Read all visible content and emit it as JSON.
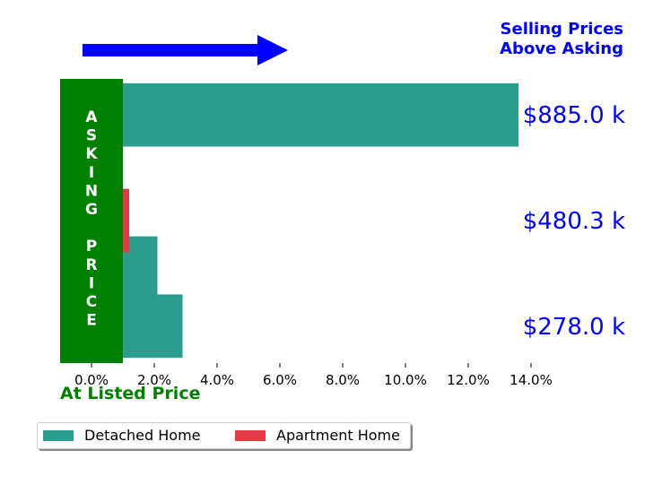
{
  "chart_data": {
    "type": "bar",
    "orientation": "horizontal",
    "categories": [
      "$278.0 k",
      "$480.3 k",
      "$885.0 k"
    ],
    "category_label_color": "#0000ff",
    "series": [
      {
        "name": "Detached Home",
        "color": "#2a9d8f",
        "bars": [
          {
            "y": 0.0,
            "x_start": 1.0,
            "x_end": 2.9
          },
          {
            "y": 0.55,
            "x_start": 1.0,
            "x_end": 2.1
          },
          {
            "y": 2.0,
            "x_start": 1.0,
            "x_end": 13.6
          }
        ]
      },
      {
        "name": "Apartment Home",
        "color": "#e63946",
        "bars": [
          {
            "y": 1.0,
            "x_start": 1.0,
            "x_end": 1.2
          }
        ]
      }
    ],
    "xlim": [
      -1.0,
      14.0
    ],
    "x_ticks": [
      0,
      2,
      4,
      6,
      8,
      10,
      12,
      14
    ],
    "x_tick_labels": [
      "0.0%",
      "2.0%",
      "4.0%",
      "6.0%",
      "8.0%",
      "10.0%",
      "12.0%",
      "14.0%"
    ],
    "legend_position": "bottom-left",
    "grid": false
  },
  "annotations": {
    "asking_price_block": {
      "text": "ASKING PRICE",
      "lines": [
        "A",
        "S",
        "K",
        "I",
        "N",
        "G",
        "",
        "P",
        "R",
        "I",
        "C",
        "E"
      ],
      "color": "#008000",
      "x_start": -1.0,
      "x_end": 1.0
    },
    "arrow_color": "#0000ff",
    "top_right_lines": [
      "Selling Prices",
      "Above Asking"
    ],
    "top_right_color": "#0000ff",
    "bottom_left": "At Listed Price",
    "bottom_left_color": "#008000"
  }
}
